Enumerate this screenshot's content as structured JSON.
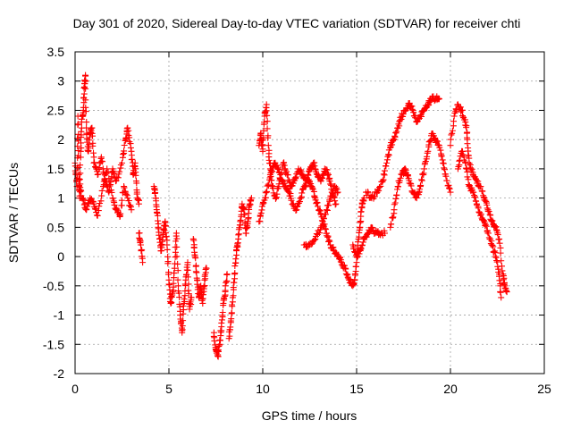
{
  "chart_data": {
    "type": "scatter",
    "title": "Day 301 of 2020, Sidereal Day-to-day VTEC variation (SDTVAR) for receiver chti",
    "xlabel": "GPS time / hours",
    "ylabel": "SDTVAR / TECUs",
    "xlim": [
      0,
      25
    ],
    "ylim": [
      -2,
      3.5
    ],
    "xticks": [
      "0",
      "5",
      "10",
      "15",
      "20",
      "25"
    ],
    "yticks": [
      "3.5",
      "3",
      "2.5",
      "2",
      "1.5",
      "1",
      "0.5",
      "0",
      "-0.5",
      "-1",
      "-1.5",
      "-2"
    ],
    "grid": true,
    "marker": "+",
    "marker_color": "#ff0000",
    "series": [
      {
        "name": "chti",
        "segments": [
          [
            [
              0.0,
              1.6
            ],
            [
              0.1,
              1.2
            ],
            [
              0.15,
              2.4
            ],
            [
              0.2,
              1.4
            ],
            [
              0.25,
              1.0
            ],
            [
              0.3,
              1.8
            ],
            [
              0.35,
              2.3
            ],
            [
              0.45,
              2.5
            ],
            [
              0.5,
              2.9
            ],
            [
              0.55,
              3.1
            ],
            [
              0.6,
              2.2
            ],
            [
              0.7,
              1.8
            ],
            [
              0.8,
              2.1
            ],
            [
              0.9,
              2.2
            ],
            [
              1.0,
              1.6
            ],
            [
              1.2,
              1.4
            ],
            [
              1.4,
              1.7
            ],
            [
              1.6,
              1.3
            ],
            [
              1.8,
              1.1
            ],
            [
              2.0,
              1.5
            ],
            [
              2.2,
              1.3
            ],
            [
              2.5,
              1.6
            ],
            [
              2.7,
              2.0
            ],
            [
              2.8,
              2.2
            ],
            [
              3.0,
              1.8
            ],
            [
              3.1,
              1.4
            ],
            [
              3.2,
              1.6
            ],
            [
              3.3,
              1.1
            ],
            [
              3.4,
              0.9
            ]
          ],
          [
            [
              0.2,
              1.2
            ],
            [
              0.4,
              1.0
            ],
            [
              0.6,
              0.8
            ],
            [
              0.8,
              1.0
            ],
            [
              1.0,
              0.9
            ],
            [
              1.2,
              0.7
            ],
            [
              1.5,
              1.2
            ],
            [
              1.7,
              1.5
            ],
            [
              2.0,
              1.0
            ],
            [
              2.2,
              0.8
            ],
            [
              2.4,
              0.7
            ],
            [
              2.6,
              1.2
            ],
            [
              2.8,
              1.0
            ],
            [
              3.0,
              0.8
            ]
          ],
          [
            [
              3.4,
              0.4
            ],
            [
              3.5,
              0.2
            ],
            [
              3.6,
              -0.1
            ]
          ],
          [
            [
              4.2,
              1.2
            ],
            [
              4.3,
              1.0
            ],
            [
              4.4,
              0.7
            ],
            [
              4.5,
              0.3
            ],
            [
              4.6,
              0.1
            ],
            [
              4.7,
              0.4
            ],
            [
              4.8,
              0.6
            ],
            [
              4.9,
              0.2
            ],
            [
              5.0,
              -0.4
            ],
            [
              5.1,
              -0.8
            ],
            [
              5.2,
              -0.6
            ],
            [
              5.3,
              -0.2
            ],
            [
              5.4,
              0.4
            ],
            [
              5.5,
              -0.5
            ],
            [
              5.6,
              -1.0
            ],
            [
              5.7,
              -1.3
            ],
            [
              5.8,
              -0.8
            ],
            [
              5.9,
              -0.4
            ],
            [
              6.0,
              -0.1
            ],
            [
              6.1,
              -0.9
            ],
            [
              6.2,
              -0.7
            ]
          ],
          [
            [
              6.3,
              0.3
            ],
            [
              6.4,
              0.0
            ],
            [
              6.5,
              -0.4
            ],
            [
              6.6,
              -0.7
            ],
            [
              6.7,
              -0.5
            ],
            [
              6.8,
              -0.8
            ],
            [
              6.9,
              -0.4
            ],
            [
              7.0,
              -0.2
            ]
          ],
          [
            [
              7.4,
              -1.3
            ],
            [
              7.5,
              -1.6
            ],
            [
              7.6,
              -1.7
            ],
            [
              7.7,
              -1.5
            ],
            [
              7.8,
              -1.2
            ],
            [
              7.9,
              -0.8
            ],
            [
              8.0,
              -0.6
            ],
            [
              8.1,
              -0.3
            ]
          ],
          [
            [
              8.2,
              -1.4
            ],
            [
              8.3,
              -1.1
            ],
            [
              8.4,
              -0.7
            ],
            [
              8.5,
              -0.3
            ],
            [
              8.6,
              0.1
            ],
            [
              8.7,
              0.3
            ],
            [
              8.8,
              0.6
            ],
            [
              8.9,
              0.9
            ],
            [
              9.0,
              0.8
            ],
            [
              9.1,
              0.4
            ],
            [
              9.2,
              0.6
            ],
            [
              9.3,
              0.9
            ],
            [
              9.4,
              1.0
            ]
          ],
          [
            [
              9.8,
              1.9
            ],
            [
              9.9,
              2.1
            ],
            [
              10.0,
              1.8
            ],
            [
              10.1,
              2.4
            ],
            [
              10.2,
              2.6
            ],
            [
              10.3,
              1.9
            ],
            [
              10.4,
              1.5
            ],
            [
              10.5,
              1.2
            ],
            [
              10.7,
              1.0
            ],
            [
              10.9,
              1.3
            ],
            [
              11.1,
              1.6
            ],
            [
              11.3,
              1.4
            ],
            [
              11.5,
              1.2
            ],
            [
              11.7,
              1.3
            ],
            [
              11.9,
              1.5
            ],
            [
              12.1,
              1.4
            ],
            [
              12.3,
              1.3
            ],
            [
              12.5,
              1.5
            ],
            [
              12.7,
              1.6
            ],
            [
              12.9,
              1.4
            ],
            [
              13.1,
              1.3
            ],
            [
              13.3,
              1.5
            ],
            [
              13.5,
              1.4
            ],
            [
              13.7,
              1.1
            ],
            [
              13.9,
              0.9
            ]
          ],
          [
            [
              9.8,
              0.6
            ],
            [
              10.0,
              0.9
            ],
            [
              10.2,
              1.1
            ],
            [
              10.4,
              1.4
            ],
            [
              10.6,
              1.6
            ],
            [
              10.8,
              1.5
            ],
            [
              11.0,
              1.3
            ],
            [
              11.2,
              1.2
            ],
            [
              11.4,
              1.1
            ],
            [
              11.6,
              0.9
            ],
            [
              11.8,
              0.8
            ],
            [
              12.0,
              1.0
            ],
            [
              12.2,
              1.2
            ],
            [
              12.4,
              1.3
            ],
            [
              12.6,
              1.2
            ],
            [
              12.8,
              1.0
            ],
            [
              13.0,
              0.8
            ],
            [
              13.2,
              0.6
            ],
            [
              13.4,
              0.4
            ],
            [
              13.6,
              0.2
            ],
            [
              13.8,
              0.1
            ],
            [
              14.0,
              0.0
            ],
            [
              14.2,
              -0.1
            ],
            [
              14.4,
              -0.2
            ],
            [
              14.6,
              -0.4
            ],
            [
              14.8,
              -0.5
            ],
            [
              14.9,
              -0.4
            ],
            [
              15.0,
              -0.1
            ],
            [
              15.1,
              0.3
            ],
            [
              15.2,
              0.6
            ],
            [
              15.3,
              0.9
            ],
            [
              15.4,
              1.0
            ]
          ],
          [
            [
              12.2,
              0.2
            ],
            [
              12.5,
              0.2
            ],
            [
              12.8,
              0.3
            ],
            [
              13.1,
              0.5
            ],
            [
              13.4,
              0.8
            ],
            [
              13.6,
              1.0
            ],
            [
              13.8,
              1.2
            ],
            [
              14.0,
              1.1
            ]
          ],
          [
            [
              14.8,
              0.2
            ],
            [
              15.0,
              0.0
            ],
            [
              15.2,
              0.1
            ],
            [
              15.4,
              0.3
            ],
            [
              15.6,
              0.4
            ],
            [
              15.8,
              0.5
            ],
            [
              16.0,
              0.4
            ],
            [
              16.2,
              0.4
            ],
            [
              16.5,
              0.4
            ]
          ],
          [
            [
              15.5,
              1.1
            ],
            [
              15.8,
              1.0
            ],
            [
              16.1,
              1.1
            ],
            [
              16.4,
              1.3
            ],
            [
              16.6,
              1.6
            ],
            [
              16.8,
              1.9
            ],
            [
              17.0,
              2.0
            ],
            [
              17.2,
              2.2
            ],
            [
              17.4,
              2.4
            ],
            [
              17.6,
              2.5
            ],
            [
              17.8,
              2.6
            ],
            [
              18.0,
              2.5
            ],
            [
              18.2,
              2.3
            ],
            [
              18.4,
              2.4
            ],
            [
              18.6,
              2.5
            ],
            [
              18.8,
              2.6
            ],
            [
              19.0,
              2.7
            ],
            [
              19.2,
              2.7
            ],
            [
              19.4,
              2.7
            ]
          ],
          [
            [
              16.8,
              0.5
            ],
            [
              17.0,
              0.8
            ],
            [
              17.2,
              1.2
            ],
            [
              17.4,
              1.4
            ],
            [
              17.6,
              1.5
            ],
            [
              17.8,
              1.3
            ],
            [
              18.0,
              1.1
            ],
            [
              18.2,
              1.0
            ],
            [
              18.4,
              1.2
            ],
            [
              18.6,
              1.5
            ],
            [
              18.8,
              1.8
            ],
            [
              19.0,
              2.1
            ],
            [
              19.2,
              2.0
            ],
            [
              19.4,
              1.9
            ],
            [
              19.6,
              1.6
            ],
            [
              19.8,
              1.3
            ],
            [
              20.0,
              1.1
            ]
          ],
          [
            [
              20.0,
              1.9
            ],
            [
              20.2,
              2.4
            ],
            [
              20.4,
              2.6
            ],
            [
              20.6,
              2.5
            ],
            [
              20.8,
              2.3
            ],
            [
              20.9,
              2.0
            ],
            [
              21.0,
              1.6
            ],
            [
              21.2,
              1.4
            ],
            [
              21.4,
              1.3
            ],
            [
              21.6,
              1.2
            ],
            [
              21.8,
              1.0
            ],
            [
              22.0,
              0.8
            ],
            [
              22.2,
              0.6
            ],
            [
              22.4,
              0.5
            ],
            [
              22.6,
              0.3
            ],
            [
              22.8,
              -0.3
            ],
            [
              22.9,
              -0.5
            ],
            [
              23.0,
              -0.6
            ]
          ],
          [
            [
              20.4,
              1.5
            ],
            [
              20.6,
              1.8
            ],
            [
              20.8,
              1.6
            ],
            [
              21.0,
              1.2
            ],
            [
              21.2,
              1.1
            ],
            [
              21.4,
              0.9
            ],
            [
              21.6,
              0.7
            ],
            [
              21.8,
              0.6
            ],
            [
              22.0,
              0.4
            ],
            [
              22.2,
              0.2
            ],
            [
              22.4,
              0.0
            ],
            [
              22.6,
              -0.3
            ],
            [
              22.7,
              -0.7
            ]
          ]
        ]
      }
    ]
  }
}
